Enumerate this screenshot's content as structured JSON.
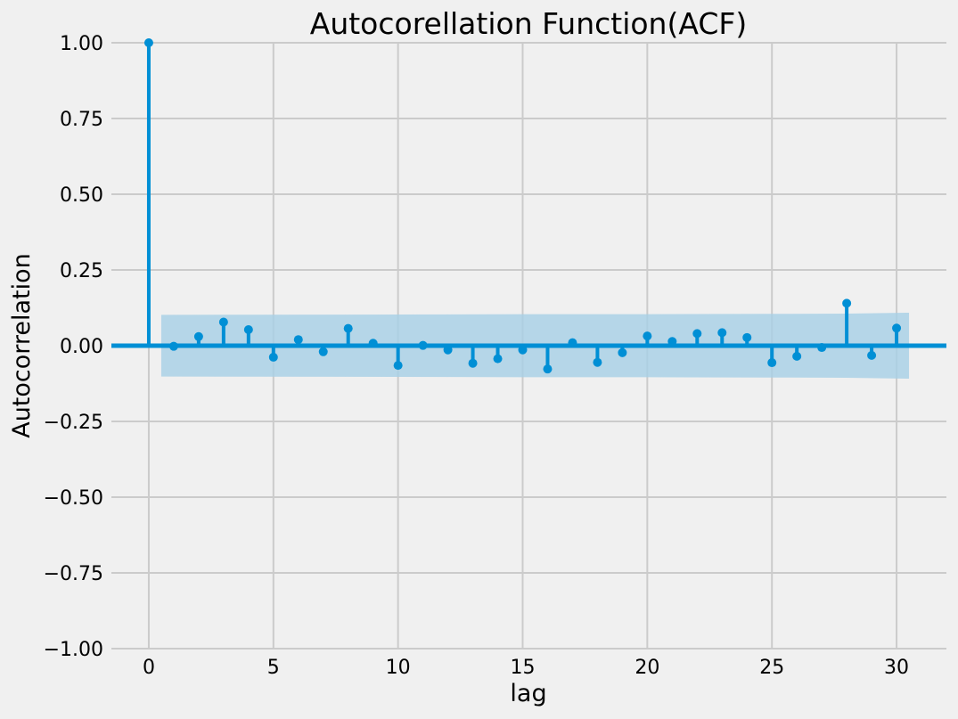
{
  "chart_data": {
    "type": "stem",
    "title": "Autocorellation Function(ACF)",
    "xlabel": "lag",
    "ylabel": "Autocorrelation",
    "xlim": [
      -1.5,
      32
    ],
    "ylim": [
      -1.0,
      1.0
    ],
    "xticks": [
      0,
      5,
      10,
      15,
      20,
      25,
      30
    ],
    "xtick_labels": [
      "0",
      "5",
      "10",
      "15",
      "20",
      "25",
      "30"
    ],
    "yticks": [
      -1.0,
      -0.75,
      -0.5,
      -0.25,
      0.0,
      0.25,
      0.5,
      0.75,
      1.0
    ],
    "ytick_labels": [
      "−1.00",
      "−0.75",
      "−0.50",
      "−0.25",
      "0.00",
      "0.25",
      "0.50",
      "0.75",
      "1.00"
    ],
    "grid": true,
    "lags": [
      0,
      1,
      2,
      3,
      4,
      5,
      6,
      7,
      8,
      9,
      10,
      11,
      12,
      13,
      14,
      15,
      16,
      17,
      18,
      19,
      20,
      21,
      22,
      23,
      24,
      25,
      26,
      27,
      28,
      29,
      30
    ],
    "values": [
      1.0,
      -0.002,
      0.03,
      0.078,
      0.053,
      -0.038,
      0.02,
      -0.02,
      0.057,
      0.008,
      -0.065,
      0.001,
      -0.014,
      -0.058,
      -0.043,
      -0.014,
      -0.077,
      0.01,
      -0.055,
      -0.023,
      0.032,
      0.014,
      0.04,
      0.043,
      0.027,
      -0.056,
      -0.035,
      -0.006,
      0.14,
      -0.032,
      0.058
    ],
    "confidence_band": {
      "x": [
        0.5,
        10,
        15,
        20,
        25,
        28,
        30.5
      ],
      "upper": [
        0.102,
        0.103,
        0.104,
        0.104,
        0.105,
        0.106,
        0.109
      ],
      "lower": [
        -0.102,
        -0.103,
        -0.104,
        -0.104,
        -0.105,
        -0.106,
        -0.109
      ]
    },
    "colors": {
      "stem": "#008fd5",
      "band": "#a6cfe6",
      "grid": "#cbcbcb",
      "background": "#f0f0f0"
    }
  }
}
